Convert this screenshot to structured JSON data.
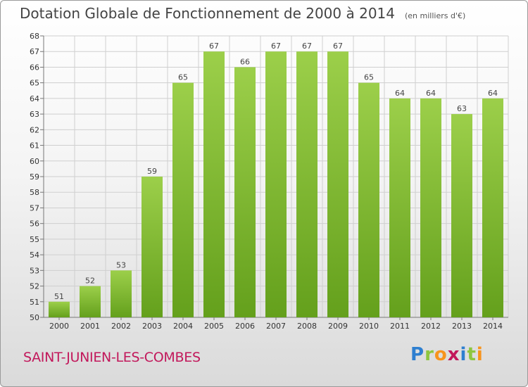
{
  "title": "Dotation Globale de Fonctionnement de 2000 à 2014",
  "unit": "(en milliers d'€)",
  "commune": "SAINT-JUNIEN-LES-COMBES",
  "logo": {
    "letters": [
      "P",
      "r",
      "o",
      "x",
      "i",
      "t",
      "i"
    ],
    "colors": [
      "#2e7fd0",
      "#8dc63f",
      "#f7941d",
      "#c2185b",
      "#2e7fd0",
      "#8dc63f",
      "#f7941d"
    ]
  },
  "colors": {
    "bar_light": "#9ccf4a",
    "bar_dark": "#64a01c",
    "grid": "#cfcfcf",
    "axis_text": "#333333"
  },
  "chart_data": {
    "type": "bar",
    "title": "Dotation Globale de Fonctionnement de 2000 à 2014",
    "subtitle": "(en milliers d'€)",
    "categories": [
      "2000",
      "2001",
      "2002",
      "2003",
      "2004",
      "2005",
      "2006",
      "2007",
      "2008",
      "2009",
      "2010",
      "2011",
      "2012",
      "2013",
      "2014"
    ],
    "values": [
      51,
      52,
      53,
      59,
      65,
      67,
      66,
      67,
      67,
      67,
      65,
      64,
      64,
      63,
      64
    ],
    "ylim": [
      50,
      68
    ],
    "yticks": [
      50,
      51,
      52,
      53,
      54,
      55,
      56,
      57,
      58,
      59,
      60,
      61,
      62,
      63,
      64,
      65,
      66,
      67,
      68
    ],
    "grid": true,
    "data_labels": true
  }
}
